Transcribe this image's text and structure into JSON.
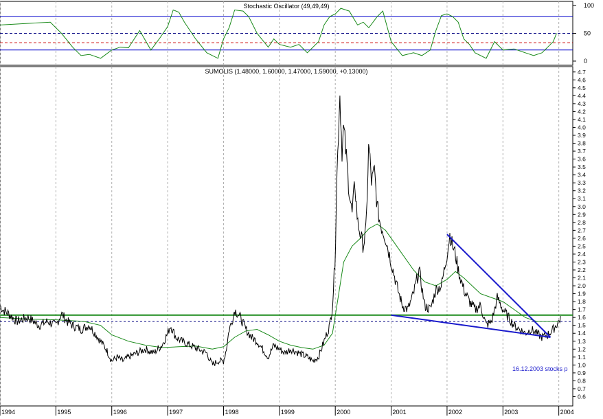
{
  "chart_data": [
    {
      "type": "line",
      "title": "Stochastic Oscillator (49,49,49)",
      "ylim": [
        -5,
        105
      ],
      "ytick_labels": [
        "100",
        "50",
        "0"
      ],
      "yticks": [
        100,
        50,
        0
      ],
      "reference_lines": [
        {
          "value": 80,
          "style": "solid",
          "color": "#0000cc"
        },
        {
          "value": 50,
          "style": "dashed",
          "color": "#000080"
        },
        {
          "value": 33,
          "style": "dashed",
          "color": "#cc0000"
        },
        {
          "value": 20,
          "style": "solid",
          "color": "#0000cc"
        }
      ],
      "series_color": "#1a8a1a",
      "x": [
        1994.0,
        1994.9,
        1995.1,
        1995.3,
        1995.45,
        1995.6,
        1995.8,
        1996.0,
        1996.15,
        1996.3,
        1996.5,
        1996.7,
        1996.85,
        1997.0,
        1997.1,
        1997.2,
        1997.3,
        1997.5,
        1997.7,
        1997.9,
        1998.0,
        1998.1,
        1998.2,
        1998.35,
        1998.45,
        1998.6,
        1998.8,
        1998.9,
        1999.0,
        1999.2,
        1999.35,
        1999.5,
        1999.7,
        1999.8,
        1999.9,
        2000.0,
        2000.1,
        2000.25,
        2000.4,
        2000.5,
        2000.6,
        2000.75,
        2000.85,
        2001.0,
        2001.2,
        2001.4,
        2001.55,
        2001.7,
        2001.8,
        2001.9,
        2002.0,
        2002.1,
        2002.2,
        2002.3,
        2002.4,
        2002.5,
        2002.7,
        2002.85,
        2003.0,
        2003.2,
        2003.4,
        2003.55,
        2003.7,
        2003.8,
        2003.9,
        2003.96
      ],
      "y": [
        65,
        70,
        50,
        25,
        10,
        12,
        5,
        20,
        25,
        24,
        55,
        20,
        40,
        62,
        92,
        88,
        70,
        40,
        15,
        5,
        40,
        60,
        92,
        90,
        80,
        50,
        25,
        40,
        30,
        25,
        30,
        15,
        35,
        65,
        80,
        85,
        95,
        90,
        65,
        70,
        60,
        80,
        90,
        35,
        10,
        15,
        10,
        20,
        55,
        82,
        85,
        80,
        70,
        40,
        30,
        15,
        5,
        35,
        20,
        22,
        15,
        10,
        15,
        25,
        35,
        50
      ]
    },
    {
      "type": "line",
      "title": "SUMOLIS (1.48000, 1.60000, 1.47000, 1.59000, +0.13000)",
      "xlim": [
        1994.0,
        2004.25
      ],
      "ylim": [
        0.5,
        4.75
      ],
      "x_tick_labels": [
        "1994",
        "1995",
        "1996",
        "1997",
        "1998",
        "1999",
        "2000",
        "2001",
        "2002",
        "2003",
        "2004"
      ],
      "x_ticks": [
        1994,
        1995,
        1996,
        1997,
        1998,
        1999,
        2000,
        2001,
        2002,
        2003,
        2004
      ],
      "y_tick_labels": [
        "0.6",
        "0.7",
        "0.8",
        "0.9",
        "1.0",
        "1.1",
        "1.2",
        "1.3",
        "1.4",
        "1.5",
        "1.6",
        "1.7",
        "1.8",
        "1.9",
        "2.0",
        "2.1",
        "2.2",
        "2.3",
        "2.4",
        "2.5",
        "2.6",
        "2.7",
        "2.8",
        "2.9",
        "3.0",
        "3.1",
        "3.2",
        "3.3",
        "3.4",
        "3.5",
        "3.6",
        "3.7",
        "3.8",
        "3.9",
        "4.0",
        "4.1",
        "4.2",
        "4.3",
        "4.4",
        "4.5",
        "4.6",
        "4.7"
      ],
      "y_ticks": [
        0.6,
        0.7,
        0.8,
        0.9,
        1.0,
        1.1,
        1.2,
        1.3,
        1.4,
        1.5,
        1.6,
        1.7,
        1.8,
        1.9,
        2.0,
        2.1,
        2.2,
        2.3,
        2.4,
        2.5,
        2.6,
        2.7,
        2.8,
        2.9,
        3.0,
        3.1,
        3.2,
        3.3,
        3.4,
        3.5,
        3.6,
        3.7,
        3.8,
        3.9,
        4.0,
        4.1,
        4.2,
        4.3,
        4.4,
        4.5,
        4.6,
        4.7
      ],
      "price": {
        "color": "#000000",
        "x": [
          1994.0,
          1994.05,
          1994.15,
          1994.3,
          1994.5,
          1994.7,
          1994.85,
          1995.0,
          1995.1,
          1995.2,
          1995.3,
          1995.45,
          1995.6,
          1995.75,
          1995.9,
          1996.0,
          1996.1,
          1996.2,
          1996.3,
          1996.45,
          1996.6,
          1996.75,
          1996.9,
          1997.0,
          1997.05,
          1997.15,
          1997.25,
          1997.4,
          1997.55,
          1997.7,
          1997.8,
          1997.9,
          1998.0,
          1998.05,
          1998.1,
          1998.15,
          1998.2,
          1998.3,
          1998.4,
          1998.5,
          1998.6,
          1998.7,
          1998.8,
          1998.9,
          1999.0,
          1999.1,
          1999.2,
          1999.35,
          1999.5,
          1999.6,
          1999.7,
          1999.75,
          1999.8,
          1999.85,
          1999.9,
          1999.95,
          2000.0,
          2000.02,
          2000.05,
          2000.08,
          2000.1,
          2000.12,
          2000.15,
          2000.2,
          2000.25,
          2000.3,
          2000.35,
          2000.4,
          2000.5,
          2000.55,
          2000.6,
          2000.65,
          2000.7,
          2000.75,
          2000.8,
          2000.9,
          2001.0,
          2001.1,
          2001.2,
          2001.3,
          2001.4,
          2001.5,
          2001.6,
          2001.7,
          2001.8,
          2001.9,
          2002.0,
          2002.05,
          2002.1,
          2002.15,
          2002.2,
          2002.3,
          2002.4,
          2002.5,
          2002.6,
          2002.7,
          2002.8,
          2002.9,
          2003.0,
          2003.1,
          2003.2,
          2003.3,
          2003.4,
          2003.5,
          2003.6,
          2003.7,
          2003.8,
          2003.9,
          2004.0,
          2004.03
        ],
        "y": [
          1.75,
          1.7,
          1.65,
          1.55,
          1.6,
          1.5,
          1.55,
          1.5,
          1.65,
          1.55,
          1.5,
          1.45,
          1.5,
          1.35,
          1.2,
          1.05,
          1.1,
          1.05,
          1.1,
          1.15,
          1.2,
          1.15,
          1.25,
          1.4,
          1.5,
          1.35,
          1.3,
          1.25,
          1.2,
          1.15,
          1.0,
          1.05,
          1.05,
          1.2,
          1.45,
          1.55,
          1.7,
          1.6,
          1.45,
          1.35,
          1.3,
          1.2,
          1.1,
          1.25,
          1.2,
          1.15,
          1.2,
          1.15,
          1.1,
          1.05,
          1.1,
          1.2,
          1.3,
          1.4,
          1.5,
          1.75,
          2.4,
          3.2,
          3.8,
          4.45,
          4.1,
          3.7,
          4.0,
          3.6,
          3.2,
          2.9,
          3.3,
          2.8,
          2.5,
          2.7,
          3.8,
          3.3,
          3.45,
          3.0,
          2.8,
          2.6,
          2.3,
          2.0,
          1.75,
          1.7,
          1.9,
          2.2,
          1.75,
          1.7,
          1.95,
          2.0,
          2.4,
          2.65,
          2.5,
          2.4,
          2.2,
          1.95,
          1.8,
          1.7,
          1.75,
          1.5,
          1.55,
          1.85,
          1.7,
          1.6,
          1.5,
          1.45,
          1.4,
          1.45,
          1.4,
          1.35,
          1.38,
          1.45,
          1.55,
          1.6
        ]
      },
      "moving_average": {
        "color": "#1a8a1a",
        "x": [
          1994.0,
          1994.5,
          1995.0,
          1995.5,
          1995.8,
          1996.0,
          1996.3,
          1996.6,
          1996.9,
          1997.2,
          1997.5,
          1997.8,
          1998.0,
          1998.2,
          1998.4,
          1998.6,
          1998.8,
          1999.0,
          1999.2,
          1999.4,
          1999.6,
          1999.8,
          1999.95,
          2000.05,
          2000.15,
          2000.3,
          2000.45,
          2000.6,
          2000.75,
          2000.9,
          2001.05,
          2001.2,
          2001.4,
          2001.6,
          2001.8,
          2002.0,
          2002.15,
          2002.3,
          2002.45,
          2002.6,
          2002.8,
          2003.0,
          2003.2,
          2003.4,
          2003.6,
          2003.8,
          2004.0
        ],
        "y": [
          1.6,
          1.58,
          1.57,
          1.55,
          1.5,
          1.38,
          1.3,
          1.25,
          1.22,
          1.23,
          1.24,
          1.2,
          1.23,
          1.35,
          1.43,
          1.45,
          1.38,
          1.3,
          1.25,
          1.22,
          1.2,
          1.25,
          1.4,
          1.85,
          2.3,
          2.5,
          2.6,
          2.72,
          2.78,
          2.7,
          2.55,
          2.4,
          2.2,
          2.05,
          2.0,
          2.08,
          2.18,
          2.1,
          2.0,
          1.9,
          1.85,
          1.8,
          1.7,
          1.6,
          1.55,
          1.55,
          1.55
        ]
      },
      "horizontal_lines": [
        {
          "value": 1.63,
          "color": "#1a8a1a",
          "style": "solid"
        },
        {
          "value": 1.55,
          "color": "#000080",
          "style": "dashed"
        }
      ],
      "trend_lines": [
        {
          "color": "#1a1acc",
          "points": [
            [
              2001.0,
              1.63
            ],
            [
              2003.85,
              1.35
            ]
          ]
        },
        {
          "color": "#1a1acc",
          "points": [
            [
              2002.0,
              2.65
            ],
            [
              2003.85,
              1.35
            ]
          ]
        }
      ],
      "annotation": "16.12.2003 stocks p"
    }
  ]
}
